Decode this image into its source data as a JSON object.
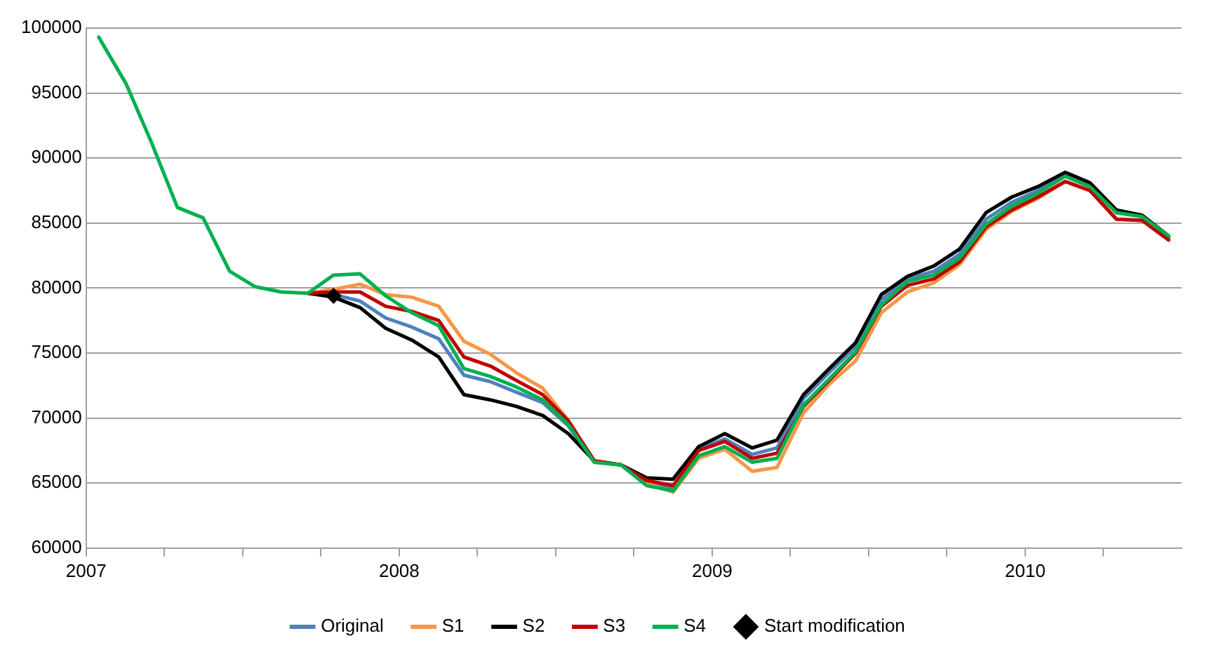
{
  "chart_data": {
    "type": "line",
    "x": [
      "2007-01-16",
      "2007-02-16",
      "2007-03-16",
      "2007-04-16",
      "2007-05-16",
      "2007-06-16",
      "2007-07-16",
      "2007-08-16",
      "2007-09-16",
      "2007-10-16",
      "2007-11-16",
      "2007-12-16",
      "2008-01-16",
      "2008-02-16",
      "2008-03-16",
      "2008-04-16",
      "2008-05-16",
      "2008-06-16",
      "2008-07-16",
      "2008-08-16",
      "2008-09-16",
      "2008-10-16",
      "2008-11-16",
      "2008-12-16",
      "2009-01-16",
      "2009-02-16",
      "2009-03-16",
      "2009-04-16",
      "2009-05-16",
      "2009-06-16",
      "2009-07-16",
      "2009-08-16",
      "2009-09-16",
      "2009-10-16",
      "2009-11-16",
      "2009-12-16",
      "2010-01-16",
      "2010-02-16",
      "2010-03-16",
      "2010-04-16",
      "2010-05-16",
      "2010-06-16"
    ],
    "series": [
      {
        "name": "Original",
        "color": "#4f81bd",
        "values": [
          null,
          null,
          null,
          null,
          null,
          null,
          null,
          null,
          79600,
          79500,
          79000,
          77700,
          77000,
          76100,
          73300,
          72800,
          72000,
          71200,
          69400,
          66600,
          66400,
          65100,
          64600,
          67600,
          68400,
          67200,
          67700,
          71500,
          73500,
          75500,
          79100,
          80700,
          81300,
          82600,
          85300,
          86600,
          87500,
          88600,
          87800,
          85800,
          85500,
          83900
        ]
      },
      {
        "name": "S1",
        "color": "#f79646",
        "values": [
          null,
          null,
          null,
          null,
          null,
          null,
          null,
          null,
          79600,
          79900,
          80300,
          79500,
          79300,
          78600,
          75900,
          74900,
          73500,
          72300,
          69800,
          66600,
          66400,
          65000,
          64300,
          66900,
          67600,
          65900,
          66200,
          70400,
          72600,
          74400,
          78100,
          79700,
          80400,
          81800,
          84500,
          85900,
          86900,
          88200,
          87500,
          85300,
          85200,
          83700
        ]
      },
      {
        "name": "S2",
        "color": "#000000",
        "values": [
          null,
          null,
          null,
          null,
          null,
          null,
          null,
          null,
          79600,
          79300,
          78500,
          76900,
          76000,
          74700,
          71800,
          71400,
          70900,
          70200,
          68800,
          66700,
          66400,
          65400,
          65300,
          67800,
          68800,
          67700,
          68300,
          71800,
          73800,
          75800,
          79500,
          80900,
          81700,
          83000,
          85800,
          87000,
          87800,
          88900,
          88100,
          86000,
          85600,
          84000
        ]
      },
      {
        "name": "S3",
        "color": "#c00000",
        "values": [
          null,
          null,
          null,
          null,
          null,
          null,
          null,
          null,
          79600,
          79700,
          79700,
          78600,
          78200,
          77500,
          74700,
          74000,
          72900,
          71800,
          69800,
          66700,
          66400,
          65200,
          64800,
          67500,
          68200,
          66900,
          67300,
          70900,
          72900,
          75000,
          78600,
          80200,
          80700,
          82000,
          84700,
          86000,
          87000,
          88200,
          87500,
          85300,
          85200,
          83700
        ]
      },
      {
        "name": "S4",
        "color": "#00b050",
        "values": [
          99300,
          95700,
          91300,
          86200,
          85400,
          81300,
          80100,
          79700,
          79600,
          81000,
          81100,
          79400,
          78100,
          77100,
          73800,
          73200,
          72400,
          71400,
          69500,
          66600,
          66400,
          64800,
          64400,
          67100,
          67800,
          66600,
          66900,
          71000,
          73000,
          75100,
          78700,
          80500,
          81000,
          82300,
          84900,
          86300,
          87300,
          88600,
          87800,
          85800,
          85500,
          84000
        ]
      },
      {
        "name": "Start modification",
        "type": "scatter",
        "marker": "diamond",
        "color": "#000000",
        "x": [
          "2007-10-16"
        ],
        "values": [
          79400
        ]
      }
    ],
    "xlim": [
      "2007",
      "2010-07"
    ],
    "xticks": [
      "2007",
      {
        "value": "2007-04",
        "label": null
      },
      {
        "value": "2007-07",
        "label": null
      },
      {
        "value": "2007-10",
        "label": null
      },
      "2008",
      {
        "value": "2008-04",
        "label": null
      },
      {
        "value": "2008-07",
        "label": null
      },
      {
        "value": "2008-10",
        "label": null
      },
      "2009",
      {
        "value": "2009-04",
        "label": null
      },
      {
        "value": "2009-07",
        "label": null
      },
      {
        "value": "2009-10",
        "label": null
      },
      "2010",
      {
        "value": "2010-04",
        "label": null
      }
    ],
    "ylim": [
      60000,
      100000
    ],
    "yticks": [
      60000,
      65000,
      70000,
      75000,
      80000,
      85000,
      90000,
      95000,
      100000
    ],
    "grid": "y",
    "legend": "bottom",
    "marker": "none",
    "line_style": "solid"
  }
}
